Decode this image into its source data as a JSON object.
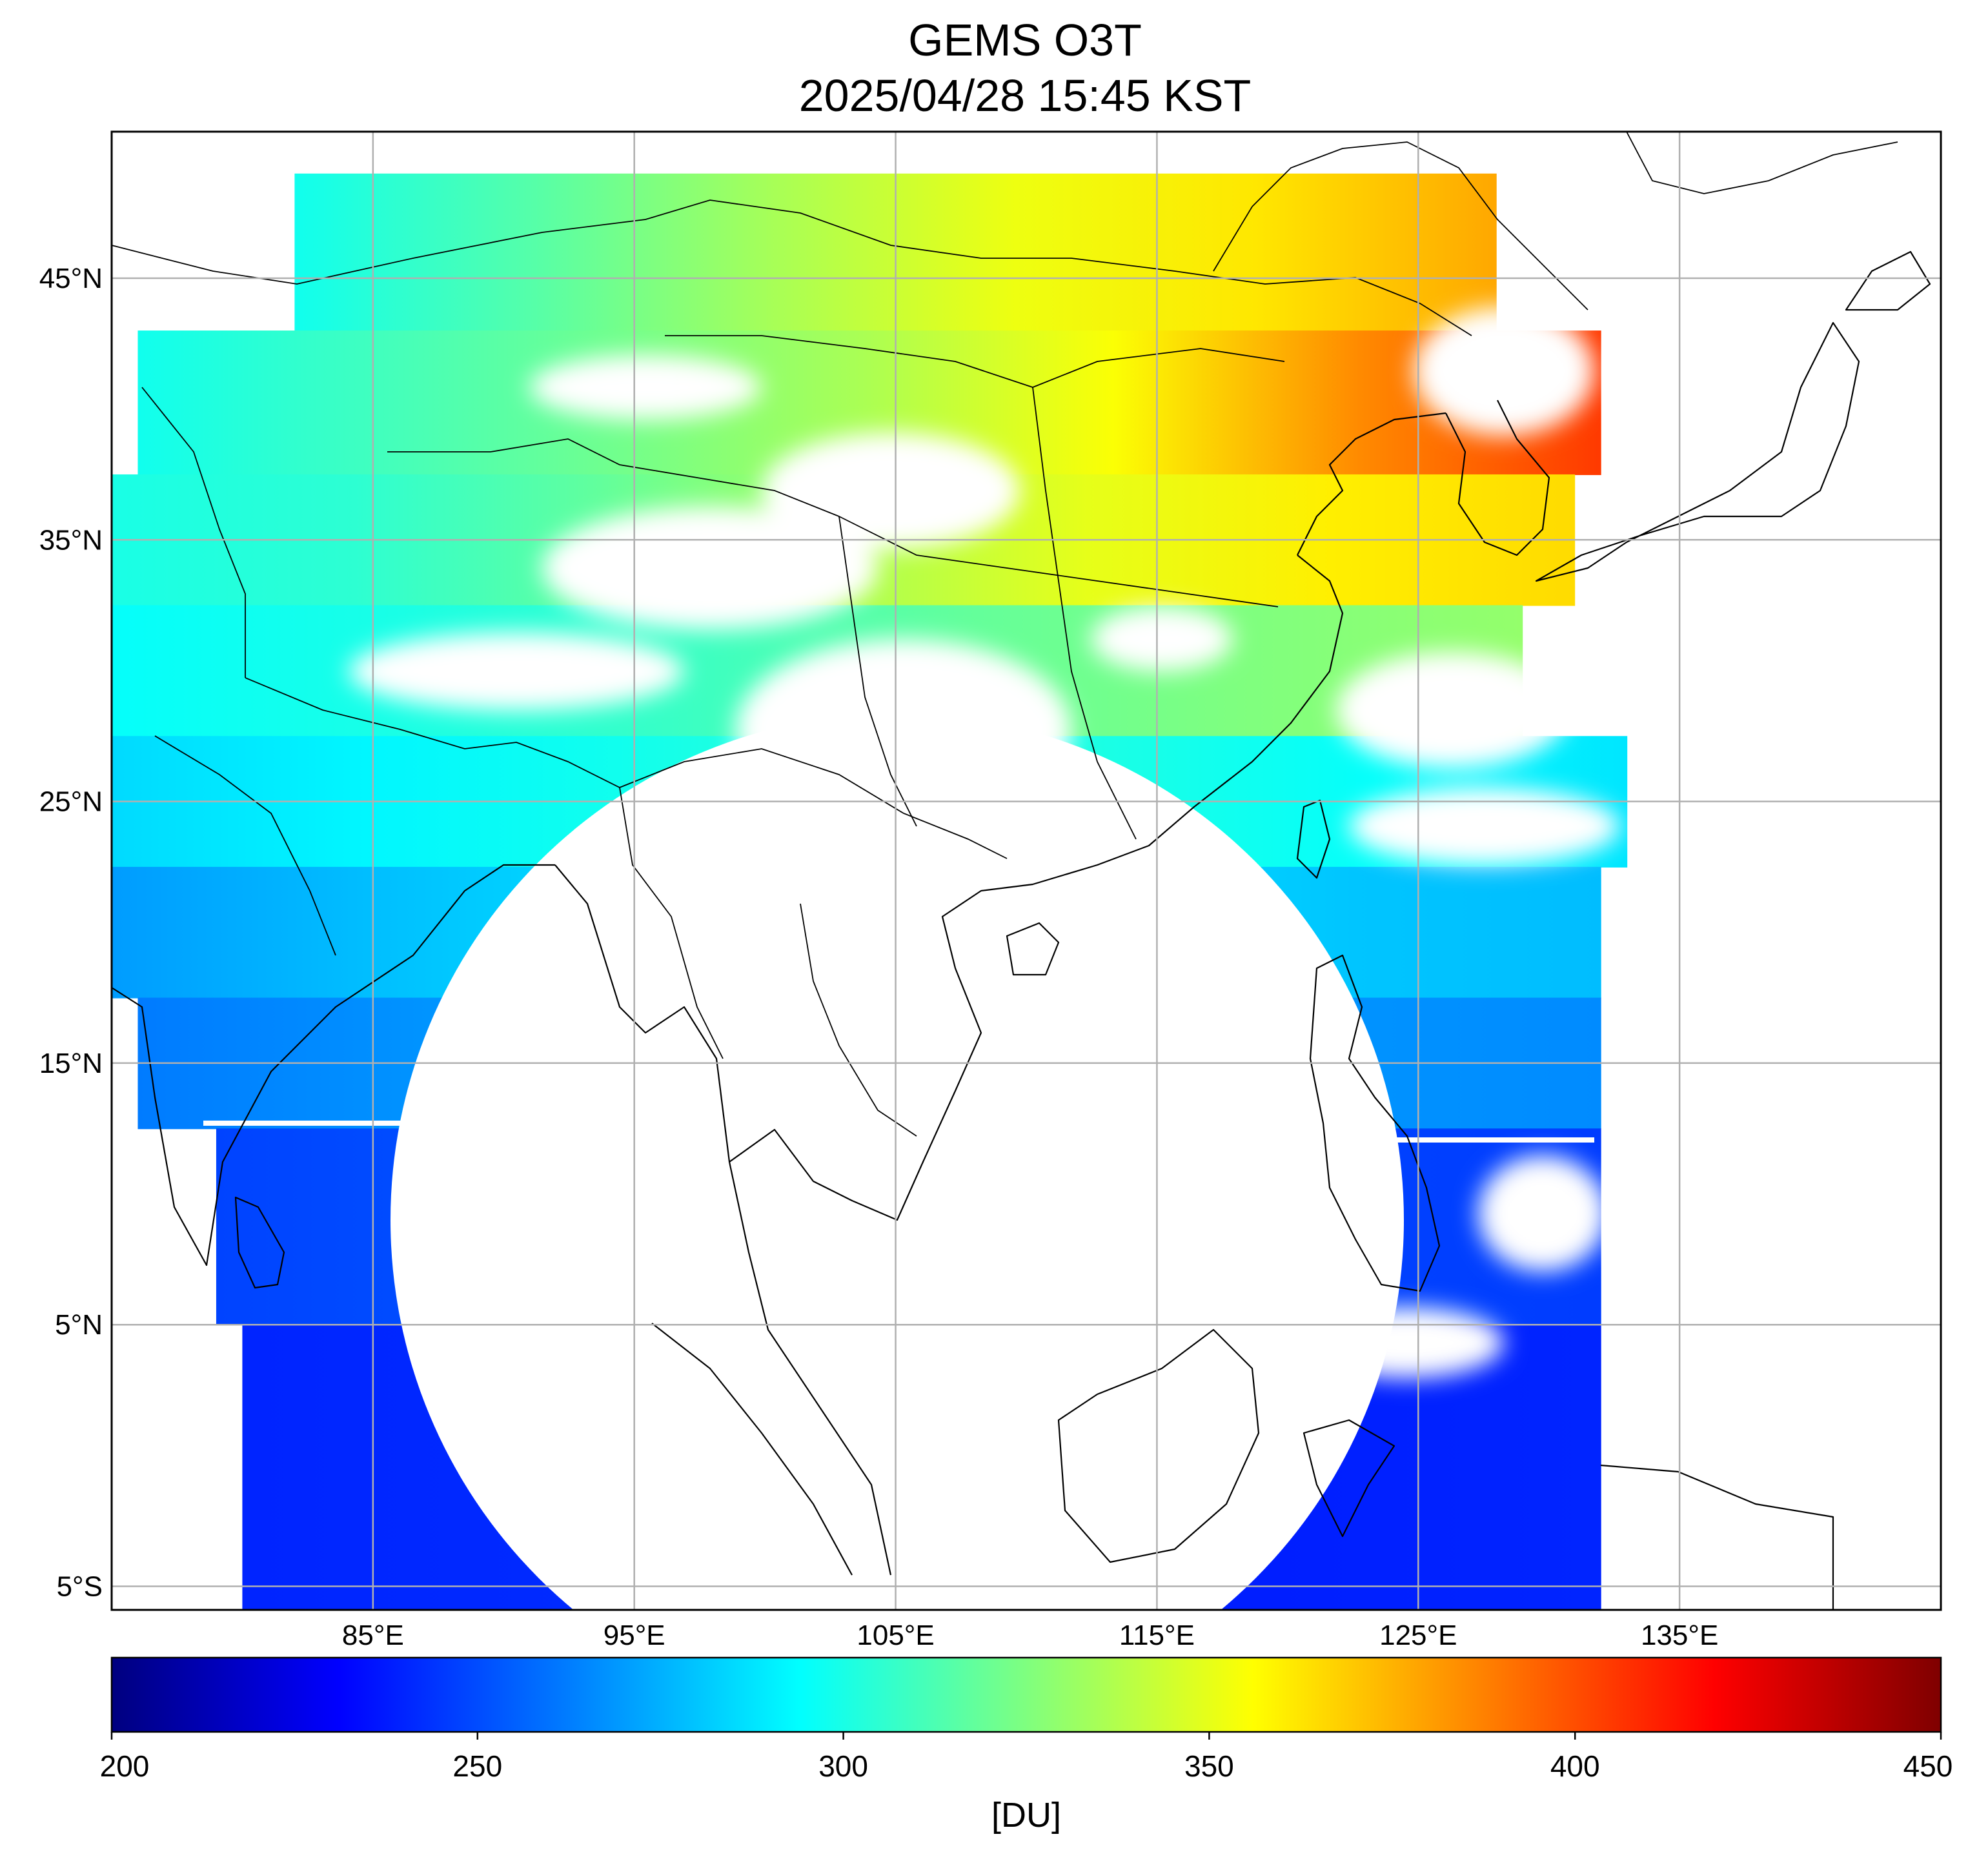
{
  "title": {
    "line1": "GEMS O3T",
    "line2": "2025/04/28 15:45 KST"
  },
  "map": {
    "lon_range": [
      75,
      145
    ],
    "lat_range": [
      -5.9,
      50.6
    ],
    "lon_ticks": [
      {
        "value": 85,
        "label": "85°E"
      },
      {
        "value": 95,
        "label": "95°E"
      },
      {
        "value": 105,
        "label": "105°E"
      },
      {
        "value": 115,
        "label": "115°E"
      },
      {
        "value": 125,
        "label": "125°E"
      },
      {
        "value": 135,
        "label": "135°E"
      }
    ],
    "lat_ticks": [
      {
        "value": 45,
        "label": "45°N"
      },
      {
        "value": 35,
        "label": "35°N"
      },
      {
        "value": 25,
        "label": "25°N"
      },
      {
        "value": 15,
        "label": "15°N"
      },
      {
        "value": 5,
        "label": "5°N"
      },
      {
        "value": -5,
        "label": "5°S"
      }
    ],
    "grid": true,
    "blank_scan_region": "circle centered near 105.5°E 7°N with no retrieved data"
  },
  "colorbar": {
    "min": 200,
    "max": 450,
    "ticks": [
      {
        "value": 200,
        "label": "200"
      },
      {
        "value": 250,
        "label": "250"
      },
      {
        "value": 300,
        "label": "300"
      },
      {
        "value": 350,
        "label": "350"
      },
      {
        "value": 400,
        "label": "400"
      },
      {
        "value": 450,
        "label": "450"
      }
    ],
    "unit": "[DU]",
    "colormap": "jet",
    "stops": [
      {
        "value": 200,
        "color": "#00007f"
      },
      {
        "value": 231,
        "color": "#0000ff"
      },
      {
        "value": 263,
        "color": "#007fff"
      },
      {
        "value": 294,
        "color": "#00ffff"
      },
      {
        "value": 325,
        "color": "#7fff7f"
      },
      {
        "value": 356,
        "color": "#ffff00"
      },
      {
        "value": 388,
        "color": "#ff7f00"
      },
      {
        "value": 419,
        "color": "#ff0000"
      },
      {
        "value": 450,
        "color": "#7f0000"
      }
    ]
  },
  "chart_data": {
    "type": "heatmap",
    "title": "GEMS O3T 2025/04/28 15:45 KST",
    "variable_unit": "[DU]",
    "xlabel": "",
    "ylabel": "",
    "x_axis": "longitude",
    "y_axis": "latitude",
    "xlim": [
      75,
      145
    ],
    "ylim": [
      -5.9,
      50.6
    ],
    "color_range": [
      200,
      450
    ],
    "latitude_bands": [
      {
        "lat": 46,
        "lon_from": 82,
        "lon_to": 128,
        "values_du": [
          298,
          315,
          335,
          352,
          362,
          378
        ]
      },
      {
        "lat": 40,
        "lon_from": 76,
        "lon_to": 132,
        "values_du": [
          298,
          310,
          322,
          336,
          355,
          385,
          405
        ]
      },
      {
        "lat": 35,
        "lon_from": 75,
        "lon_to": 131,
        "values_du": [
          300,
          305,
          318,
          335,
          350,
          360,
          365
        ]
      },
      {
        "lat": 30,
        "lon_from": 75,
        "lon_to": 129,
        "values_du": [
          295,
          300,
          308,
          318,
          325,
          330
        ]
      },
      {
        "lat": 25,
        "lon_from": 75,
        "lon_to": 133,
        "values_du": [
          285,
          292,
          298,
          305,
          300,
          295,
          288
        ]
      },
      {
        "lat": 20,
        "lon_from": 75,
        "lon_to": 132,
        "values_du": [
          270,
          278,
          285,
          290,
          285,
          280,
          278
        ]
      },
      {
        "lat": 15,
        "lon_from": 76,
        "lon_to": 132,
        "values_du": [
          262,
          268,
          272,
          270,
          268,
          266
        ]
      },
      {
        "lat": 10,
        "lon_from": 79,
        "lon_to": 132,
        "values_du": [
          248,
          252,
          250,
          248,
          246
        ]
      },
      {
        "lat": 0,
        "lon_from": 80,
        "lon_to": 132,
        "values_du": [
          240,
          242,
          238,
          240
        ]
      }
    ]
  }
}
